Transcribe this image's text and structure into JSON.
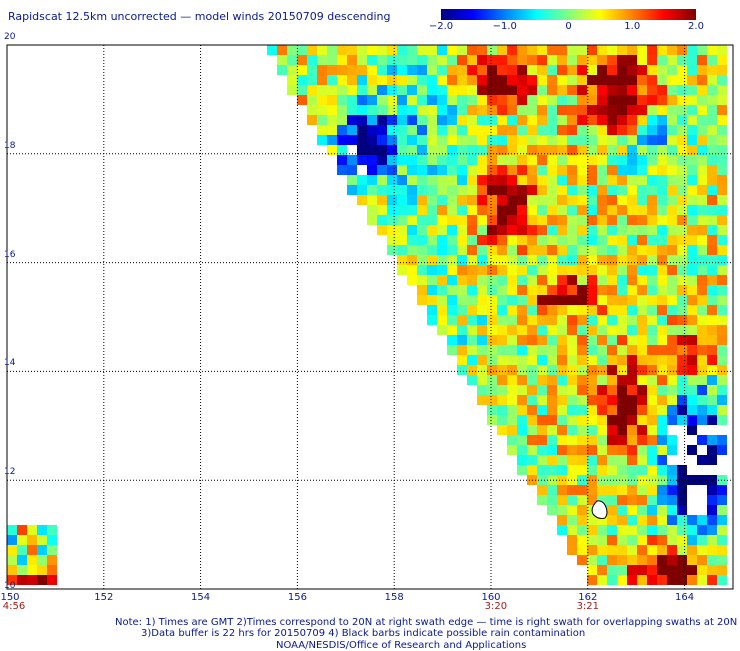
{
  "title": "Rapidscat 12.5km uncorrected — model winds 20150709 descending",
  "colorbar": {
    "ticks": [
      {
        "label": "−2.0",
        "value": -2.0
      },
      {
        "label": "−1.0",
        "value": -1.0
      },
      {
        "label": "0",
        "value": 0
      },
      {
        "label": "1.0",
        "value": 1.0
      },
      {
        "label": "2.0",
        "value": 2.0
      }
    ],
    "range": [
      -2.0,
      2.0
    ],
    "colors": [
      "#00007f",
      "#0000ff",
      "#0080ff",
      "#00ffff",
      "#80ff80",
      "#ffff00",
      "#ff8000",
      "#ff0000",
      "#7f0000"
    ]
  },
  "map": {
    "lon_range": [
      150,
      165
    ],
    "lat_range": [
      10,
      20
    ],
    "lat_labels": [
      "20",
      "18",
      "16",
      "14",
      "12",
      "10"
    ],
    "lon_labels": [
      "150",
      "152",
      "154",
      "156",
      "158",
      "160",
      "162",
      "164"
    ],
    "grid": "dotted"
  },
  "time_labels": [
    {
      "text": "4:56",
      "lon": 150
    },
    {
      "text": "3:20",
      "lon": 160.1
    },
    {
      "text": "3:21",
      "lon": 162.0
    }
  ],
  "notes": [
    "Note: 1) Times are GMT 2)Times correspond to 20N at right swath edge — time is right swath for overlapping swaths at 20N",
    "3)Data buffer is 22 hrs for 20150709 4) Black barbs indicate possible rain contamination",
    "NOAA/NESDIS/Office of Research and Applications"
  ]
}
